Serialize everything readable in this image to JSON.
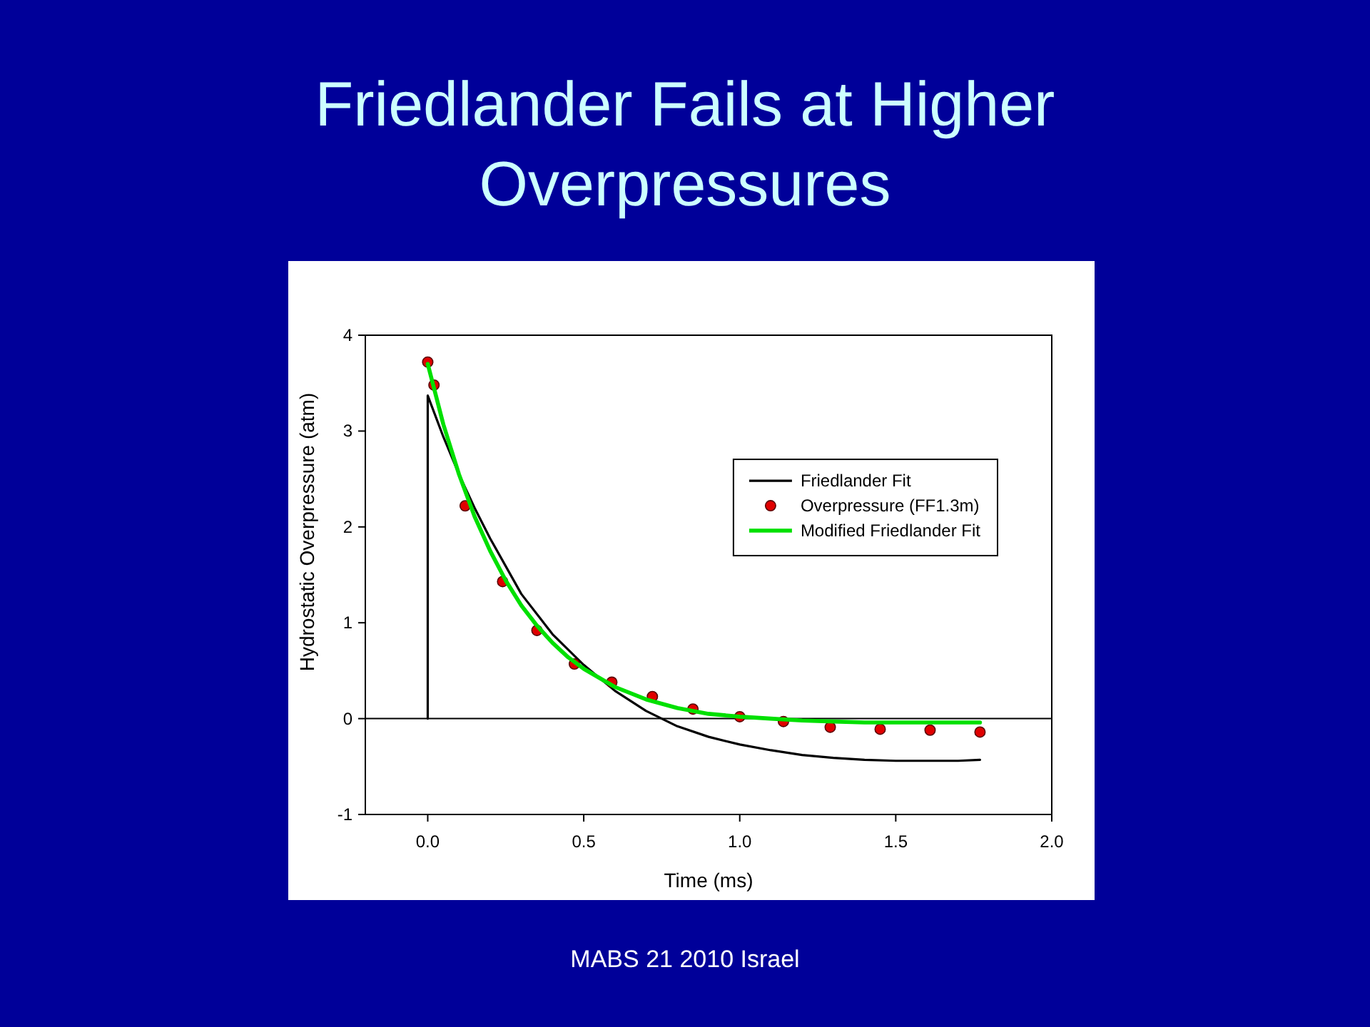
{
  "chart_data": {
    "type": "line",
    "title": "Friedlander Fails at Higher Overpressures",
    "xlabel": "Time (ms)",
    "ylabel": "Hydrostatic Overpressure (atm)",
    "annotations": [
      "MABS 21 2010 Israel"
    ],
    "xlim": [
      -0.2,
      2.0
    ],
    "ylim": [
      -1,
      4
    ],
    "xticks": [
      {
        "value": 0,
        "label": "0.0"
      },
      0.5,
      {
        "value": 1,
        "label": "1.0"
      },
      1.5,
      {
        "value": 2,
        "label": "2.0"
      }
    ],
    "yticks": [
      -1,
      0,
      1,
      2,
      3,
      4
    ],
    "legend": "right",
    "ref_lines": [
      {
        "axis": "y",
        "value": 0,
        "color": "#000000"
      }
    ],
    "series": [
      {
        "name": "Friedlander Fit",
        "color": "#000000",
        "x": [
          0,
          0,
          0.05,
          0.1,
          0.15,
          0.2,
          0.3,
          0.4,
          0.5,
          0.6,
          0.7,
          0.8,
          0.9,
          1.0,
          1.1,
          1.2,
          1.3,
          1.4,
          1.5,
          1.6,
          1.7,
          1.77
        ],
        "values": [
          0,
          3.37,
          2.94,
          2.55,
          2.2,
          1.88,
          1.3,
          0.88,
          0.56,
          0.29,
          0.08,
          -0.08,
          -0.19,
          -0.27,
          -0.33,
          -0.38,
          -0.41,
          -0.43,
          -0.44,
          -0.44,
          -0.44,
          -0.43
        ]
      },
      {
        "name": "Overpressure (FF1.3m)",
        "type": "scatter",
        "marker": "circle",
        "color": "#e00000",
        "x": [
          0,
          0.02,
          0.12,
          0.24,
          0.35,
          0.47,
          0.59,
          0.72,
          0.85,
          1.0,
          1.14,
          1.29,
          1.45,
          1.61,
          1.77
        ],
        "values": [
          3.72,
          3.48,
          2.22,
          1.43,
          0.92,
          0.57,
          0.38,
          0.23,
          0.1,
          0.02,
          -0.03,
          -0.09,
          -0.11,
          -0.12,
          -0.14
        ]
      },
      {
        "name": "Modified Friedlander Fit",
        "color": "#00e000",
        "x": [
          0,
          0.05,
          0.1,
          0.15,
          0.2,
          0.25,
          0.3,
          0.35,
          0.4,
          0.45,
          0.5,
          0.6,
          0.7,
          0.8,
          0.9,
          1.0,
          1.1,
          1.2,
          1.3,
          1.4,
          1.5,
          1.6,
          1.77
        ],
        "values": [
          3.7,
          3.07,
          2.55,
          2.11,
          1.75,
          1.44,
          1.18,
          0.97,
          0.79,
          0.64,
          0.52,
          0.33,
          0.2,
          0.11,
          0.05,
          0.02,
          0,
          -0.02,
          -0.03,
          -0.04,
          -0.04,
          -0.04,
          -0.04
        ]
      }
    ]
  }
}
